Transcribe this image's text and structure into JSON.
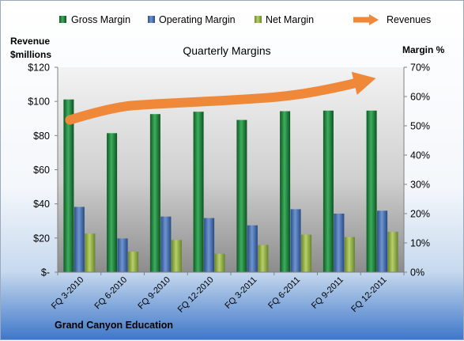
{
  "chart_data": {
    "type": "bar",
    "title": "Quarterly Margins",
    "footer": "Grand Canyon Education",
    "ylabel_left": [
      "Revenue",
      "$millions"
    ],
    "ylabel_right": "Margin %",
    "categories": [
      "FQ 3-2010",
      "FQ 6-2010",
      "FQ 9-2010",
      "FQ 12-2010",
      "FQ 3-2011",
      "FQ 6-2011",
      "FQ 9-2011",
      "FQ 12-2011"
    ],
    "y_left": {
      "min": 0,
      "max": 120,
      "ticks": [
        0,
        20,
        40,
        60,
        80,
        100,
        120
      ],
      "tick_labels": [
        "$-",
        "$20",
        "$40",
        "$60",
        "$80",
        "$100",
        "$120"
      ]
    },
    "y_right": {
      "min": 0,
      "max": 70,
      "ticks": [
        0,
        10,
        20,
        30,
        40,
        50,
        60,
        70
      ],
      "tick_labels": [
        "0%",
        "10%",
        "20%",
        "30%",
        "40%",
        "50%",
        "60%",
        "70%"
      ]
    },
    "series": [
      {
        "name": "Gross Margin",
        "type": "bar",
        "axis": "right",
        "color": "#1f7a3c",
        "values": [
          59,
          47.5,
          54,
          54.8,
          52,
          55,
          55.2,
          55.2
        ]
      },
      {
        "name": "Operating Margin",
        "type": "bar",
        "axis": "right",
        "color": "#3f6bb0",
        "values": [
          22.3,
          11.5,
          19,
          18.5,
          16,
          21.5,
          20,
          21
        ]
      },
      {
        "name": "Net Margin",
        "type": "bar",
        "axis": "right",
        "color": "#8fae3c",
        "values": [
          13.2,
          7,
          11,
          6.3,
          9.3,
          12.8,
          12,
          13.8
        ]
      },
      {
        "name": "Revenues",
        "type": "line",
        "axis": "right",
        "color": "#f0883a",
        "values": [
          52,
          56.5,
          57.5,
          58.2,
          59,
          60,
          62.5,
          66
        ]
      }
    ],
    "grid": false,
    "legend_position": "top"
  },
  "colors": {
    "gross": "#1f7a3c",
    "operating": "#3f6bb0",
    "net": "#8fae3c",
    "revenues": "#f0883a"
  }
}
